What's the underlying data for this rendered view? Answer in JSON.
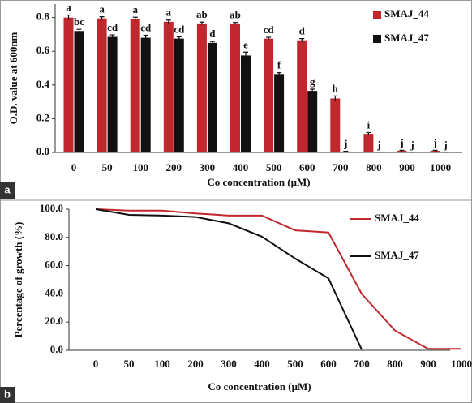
{
  "chart_data": [
    {
      "type": "bar",
      "panel_label": "a",
      "xlabel": "Co concentration (μM)",
      "ylabel": "O.D. value at 600nm",
      "categories": [
        "0",
        "50",
        "100",
        "200",
        "300",
        "400",
        "500",
        "600",
        "700",
        "800",
        "900",
        "1000"
      ],
      "series": [
        {
          "name": "SMAJ_44",
          "color": "#c0282d",
          "values": [
            0.8,
            0.795,
            0.79,
            0.775,
            0.765,
            0.765,
            0.675,
            0.665,
            0.32,
            0.11,
            0.01,
            0.01
          ],
          "errors": [
            0.015,
            0.01,
            0.012,
            0.01,
            0.008,
            0.006,
            0.008,
            0.01,
            0.015,
            0.008,
            0.003,
            0.003
          ],
          "letters": [
            "a",
            "a",
            "a",
            "a",
            "ab",
            "ab",
            "cd",
            "d",
            "h",
            "i",
            "j",
            "j"
          ]
        },
        {
          "name": "SMAJ_47",
          "color": "#111111",
          "values": [
            0.72,
            0.685,
            0.68,
            0.675,
            0.65,
            0.575,
            0.465,
            0.365,
            0.005,
            0.0,
            0.0,
            0.0
          ],
          "errors": [
            0.01,
            0.012,
            0.015,
            0.01,
            0.008,
            0.02,
            0.008,
            0.01,
            0.002,
            0.001,
            0.001,
            0.001
          ],
          "letters": [
            "bc",
            "cd",
            "cd",
            "cd",
            "d",
            "e",
            "f",
            "g",
            "j",
            "j",
            "j",
            "j"
          ]
        }
      ],
      "ylim": [
        0,
        0.88
      ],
      "yticks": [
        {
          "value": 0,
          "label": "0.0"
        },
        0.2,
        0.4,
        0.6,
        0.8
      ]
    },
    {
      "type": "line",
      "panel_label": "b",
      "xlabel": "Co concentration (μM)",
      "ylabel": "Percentage of growth (%)",
      "categories": [
        "0",
        "50",
        "100",
        "200",
        "300",
        "400",
        "500",
        "600",
        "700",
        "800",
        "900",
        "1000"
      ],
      "series": [
        {
          "name": "SMAJ_44",
          "color": "#c0282d",
          "values": [
            100,
            99,
            99,
            97,
            95.5,
            95.5,
            85,
            83.5,
            40,
            14,
            1,
            1
          ]
        },
        {
          "name": "SMAJ_47",
          "color": "#111111",
          "values": [
            100,
            96,
            95.5,
            94.5,
            90,
            80.5,
            65,
            51,
            0.5,
            null,
            null,
            null
          ]
        }
      ],
      "ylim": [
        0,
        100
      ],
      "yticks": [
        {
          "value": 0,
          "label": "0.0"
        },
        {
          "value": 20,
          "label": "20.0"
        },
        {
          "value": 40,
          "label": "40.0"
        },
        {
          "value": 60,
          "label": "60.0"
        },
        {
          "value": 80,
          "label": "80.0"
        },
        {
          "value": 100,
          "label": "100.0"
        }
      ]
    }
  ]
}
